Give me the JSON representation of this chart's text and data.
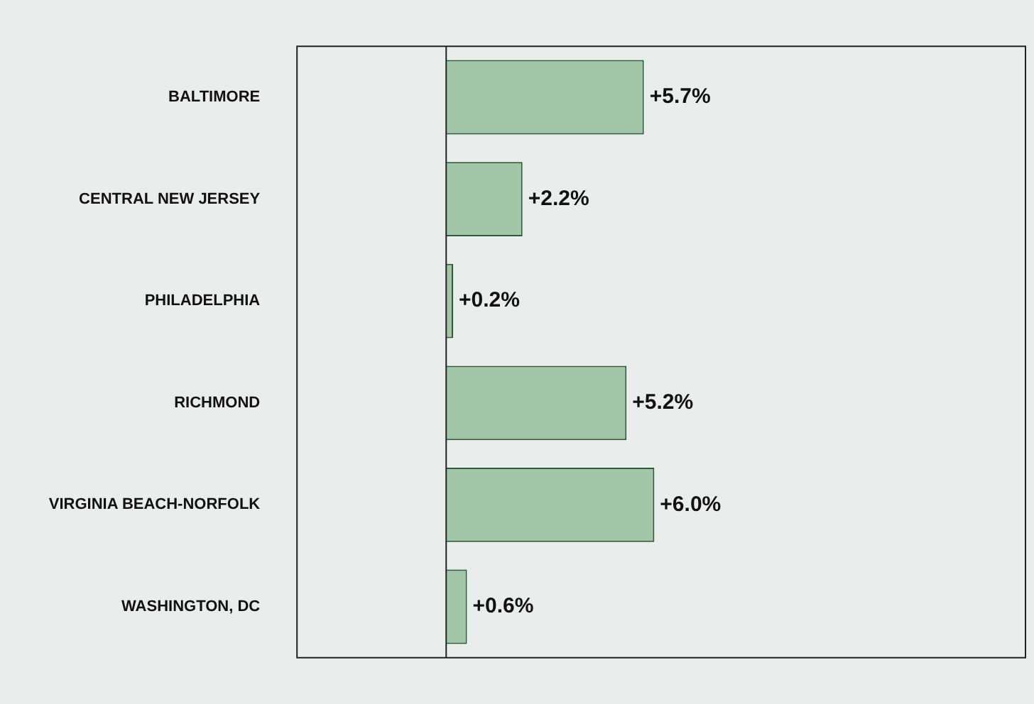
{
  "chart_data": {
    "type": "bar",
    "orientation": "horizontal",
    "categories": [
      "BALTIMORE",
      "CENTRAL NEW JERSEY",
      "PHILADELPHIA",
      "RICHMOND",
      "VIRGINIA BEACH-NORFOLK",
      "WASHINGTON, DC"
    ],
    "values": [
      5.7,
      2.2,
      0.2,
      5.2,
      6.0,
      0.6
    ],
    "value_labels": [
      "+5.7%",
      "+2.2%",
      "+0.2%",
      "+5.2%",
      "+6.0%",
      "+0.6%"
    ],
    "color": "#a3c6a9",
    "xlim": [
      -4.3,
      16.7
    ],
    "tick_labels": "y",
    "grid": false,
    "legend": false
  }
}
